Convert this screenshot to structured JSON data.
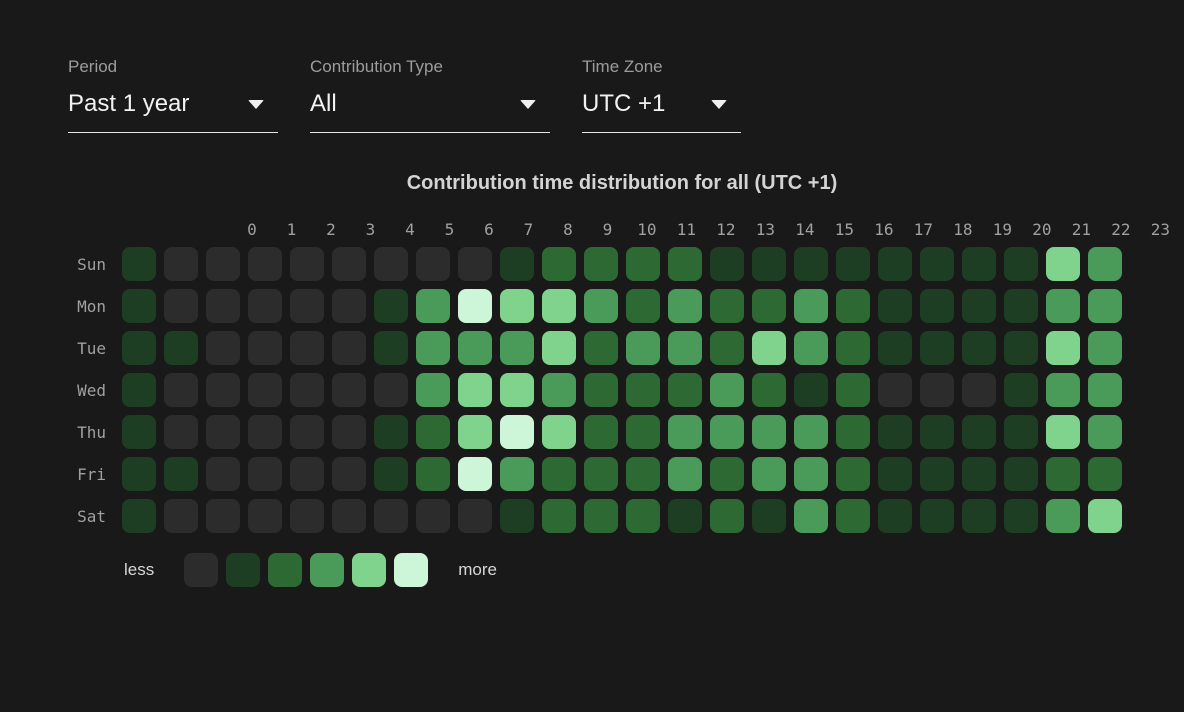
{
  "filters": [
    {
      "id": "period",
      "label": "Period",
      "value": "Past 1 year"
    },
    {
      "id": "contribution-type",
      "label": "Contribution Type",
      "value": "All"
    },
    {
      "id": "time-zone",
      "label": "Time Zone",
      "value": "UTC +1"
    }
  ],
  "chart_data": {
    "type": "heatmap",
    "title": "Contribution time distribution for all (UTC +1)",
    "x_labels": [
      "0",
      "1",
      "2",
      "3",
      "4",
      "5",
      "6",
      "7",
      "8",
      "9",
      "10",
      "11",
      "12",
      "13",
      "14",
      "15",
      "16",
      "17",
      "18",
      "19",
      "20",
      "21",
      "22",
      "23"
    ],
    "y_labels": [
      "Sun",
      "Mon",
      "Tue",
      "Wed",
      "Thu",
      "Fri",
      "Sat"
    ],
    "legend": {
      "less_label": "less",
      "more_label": "more",
      "palette": [
        "#2c2c2c",
        "#1d3e23",
        "#2d6a33",
        "#4a9b59",
        "#7fd38c",
        "#cdf5d8"
      ],
      "scale_note": "intensity levels 0 (less) to 5 (more)"
    },
    "values": [
      [
        1,
        0,
        0,
        0,
        0,
        0,
        0,
        0,
        0,
        1,
        2,
        2,
        2,
        2,
        1,
        1,
        1,
        1,
        1,
        1,
        1,
        1,
        4,
        3
      ],
      [
        1,
        0,
        0,
        0,
        0,
        0,
        1,
        3,
        5,
        4,
        4,
        3,
        2,
        3,
        2,
        2,
        3,
        2,
        1,
        1,
        1,
        1,
        3,
        3
      ],
      [
        1,
        1,
        0,
        0,
        0,
        0,
        1,
        3,
        3,
        3,
        4,
        2,
        3,
        3,
        2,
        4,
        3,
        2,
        1,
        1,
        1,
        1,
        4,
        3
      ],
      [
        1,
        0,
        0,
        0,
        0,
        0,
        0,
        3,
        4,
        4,
        3,
        2,
        2,
        2,
        3,
        2,
        1,
        2,
        0,
        0,
        0,
        1,
        3,
        3
      ],
      [
        1,
        0,
        0,
        0,
        0,
        0,
        1,
        2,
        4,
        5,
        4,
        2,
        2,
        3,
        3,
        3,
        3,
        2,
        1,
        1,
        1,
        1,
        4,
        3
      ],
      [
        1,
        1,
        0,
        0,
        0,
        0,
        1,
        2,
        5,
        3,
        2,
        2,
        2,
        3,
        2,
        3,
        3,
        2,
        1,
        1,
        1,
        1,
        2,
        2
      ],
      [
        1,
        0,
        0,
        0,
        0,
        0,
        0,
        0,
        0,
        1,
        2,
        2,
        2,
        1,
        2,
        1,
        3,
        2,
        1,
        1,
        1,
        1,
        3,
        4
      ]
    ]
  }
}
